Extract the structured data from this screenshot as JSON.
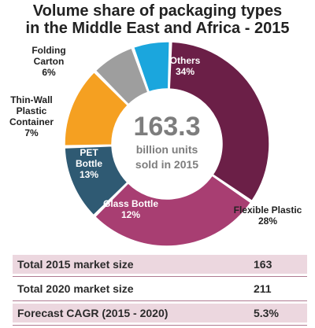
{
  "chart_data": {
    "type": "pie",
    "title": "Volume share of packaging types in the Middle East and Africa - 2015",
    "title_lines": [
      "Volume share of packaging types",
      "in the Middle East and Africa - 2015"
    ],
    "center": {
      "value": "163.3",
      "line1": "billion units",
      "line2": "sold in 2015"
    },
    "slices": [
      {
        "label_lines": [
          "Others"
        ],
        "percent_text": "34%",
        "value": 34,
        "color": "#6b1f47"
      },
      {
        "label_lines": [
          "Flexible Plastic"
        ],
        "percent_text": "28%",
        "value": 28,
        "color": "#a83e72"
      },
      {
        "label_lines": [
          "Glass Bottle"
        ],
        "percent_text": "12%",
        "value": 12,
        "color": "#2f5a73"
      },
      {
        "label_lines": [
          "PET",
          "Bottle"
        ],
        "percent_text": "13%",
        "value": 13,
        "color": "#f5a021"
      },
      {
        "label_lines": [
          "Thin-Wall",
          "Plastic",
          "Container"
        ],
        "percent_text": "7%",
        "value": 7,
        "color": "#9e9e9e"
      },
      {
        "label_lines": [
          "Folding",
          "Carton"
        ],
        "percent_text": "6%",
        "value": 6,
        "color": "#1ba6dd"
      }
    ]
  },
  "stats": [
    {
      "label": "Total 2015 market size",
      "value": "163"
    },
    {
      "label": "Total 2020 market size",
      "value": "211"
    },
    {
      "label": "Forecast CAGR (2015 - 2020)",
      "value": "5.3%"
    }
  ]
}
